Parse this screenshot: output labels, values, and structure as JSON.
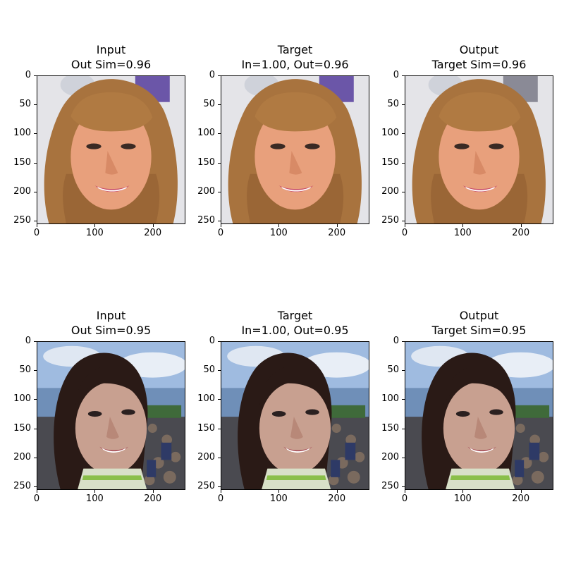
{
  "chart_data": {
    "type": "image-grid",
    "xlim": [
      0,
      255
    ],
    "ylim": [
      255,
      0
    ],
    "xticks": [
      0,
      100,
      200
    ],
    "yticks": [
      0,
      50,
      100,
      150,
      200,
      250
    ],
    "rows": [
      {
        "panels": [
          {
            "title1": "Input",
            "title2": "Out Sim=0.96",
            "image": "woman-blonde-bangs"
          },
          {
            "title1": "Target",
            "title2": "In=1.00, Out=0.96",
            "image": "woman-blonde-bangs"
          },
          {
            "title1": "Output",
            "title2": "Target Sim=0.96",
            "image": "woman-blonde-bangs-reconstructed"
          }
        ]
      },
      {
        "panels": [
          {
            "title1": "Input",
            "title2": "Out Sim=0.95",
            "image": "woman-dark-hair-crowd"
          },
          {
            "title1": "Target",
            "title2": "In=1.00, Out=0.95",
            "image": "woman-dark-hair-crowd"
          },
          {
            "title1": "Output",
            "title2": "Target Sim=0.95",
            "image": "woman-dark-hair-crowd-reconstructed"
          }
        ]
      }
    ]
  }
}
